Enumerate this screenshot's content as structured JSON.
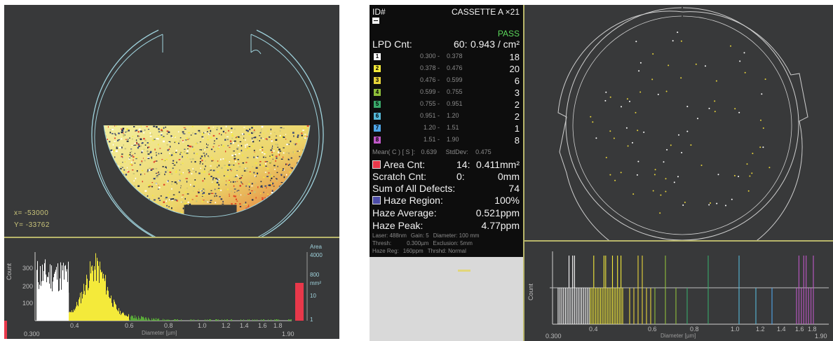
{
  "left_panel": {
    "coords": {
      "x_line": "x=  -53000",
      "y_line": "Y=  -33762"
    },
    "histogram": {
      "y_label": "Count",
      "y_ticks": [
        "300",
        "200",
        "100"
      ],
      "x_ticks": [
        "0.300",
        "0.4",
        "0.6",
        "0.8",
        "1.0",
        "1.2",
        "1.4",
        "1.6",
        "1.8",
        "1.90"
      ],
      "x_label": "Diameter [µm]",
      "area_labels": [
        "Area",
        "4000",
        "800",
        "mm²",
        "10",
        "1"
      ]
    }
  },
  "stats": {
    "id_label": "ID#",
    "cassette": "CASSETTE A ×21",
    "status": "PASS",
    "lpd": {
      "label": "LPD Cnt:",
      "count": "60:",
      "density": "0.943 / cm²"
    },
    "bins": [
      {
        "n": "1",
        "min": "0.300 -",
        "max": "0.378",
        "count": "18",
        "color": "#ffffff"
      },
      {
        "n": "2",
        "min": "0.378 -",
        "max": "0.476",
        "count": "20",
        "color": "#f4ea3a"
      },
      {
        "n": "3",
        "min": "0.476 -",
        "max": "0.599",
        "count": "6",
        "color": "#e7d43a"
      },
      {
        "n": "4",
        "min": "0.599 -",
        "max": "0.755",
        "count": "3",
        "color": "#8fbf3a"
      },
      {
        "n": "5",
        "min": "0.755 -",
        "max": "0.951",
        "count": "2",
        "color": "#3aa86a"
      },
      {
        "n": "6",
        "min": "0.951 -",
        "max": "1.20",
        "count": "2",
        "color": "#55b8d8"
      },
      {
        "n": "7",
        "min": "1.20 -",
        "max": "1.51",
        "count": "1",
        "color": "#4fa6e8"
      },
      {
        "n": "8",
        "min": "1.51 -",
        "max": "1.90",
        "count": "8",
        "color": "#c058c8"
      }
    ],
    "mean_line": {
      "mean_label": "Mean( C ) [ S ]:",
      "mean_value": "0.639",
      "std_label": "StdDev:",
      "std_value": "0.475"
    },
    "area": {
      "label": "Area Cnt:",
      "count": "14:",
      "value": "0.411mm²"
    },
    "scratch": {
      "label": "Scratch Cnt:",
      "count": "0:",
      "value": "0mm"
    },
    "sum": {
      "label": "Sum of All Defects:",
      "value": "74"
    },
    "haze_region": {
      "label": "Haze Region:",
      "value": "100%"
    },
    "haze_average": {
      "label": "Haze Average:",
      "value": "0.521ppm"
    },
    "haze_peak": {
      "label": "Haze Peak:",
      "value": "4.77ppm"
    },
    "footer": [
      {
        "c1": "Laser: 488nm",
        "c2": "Gain: 5",
        "c3": "Diameter: 100 mm"
      },
      {
        "c1": "Thresh:",
        "c2": "0.300µm",
        "c3": "Exclusion: 5mm"
      },
      {
        "c1": "Haze Reg:",
        "c2": "160ppm",
        "c3": "Thrshd: Normal"
      }
    ]
  },
  "right_panel": {
    "histogram": {
      "y_label": "Count",
      "x_ticks": [
        "0.300",
        "0.4",
        "0.6",
        "0.8",
        "1.0",
        "1.2",
        "1.4",
        "1.6",
        "1.8",
        "1.90"
      ],
      "x_label": "Diameter [µm]"
    }
  },
  "colors": {
    "panel_bg": "#38393a",
    "separator": "#b7b56a",
    "wafer_outline": "#9fd2dc",
    "pass": "#5bd85b",
    "area_bar": "#e8384a"
  }
}
